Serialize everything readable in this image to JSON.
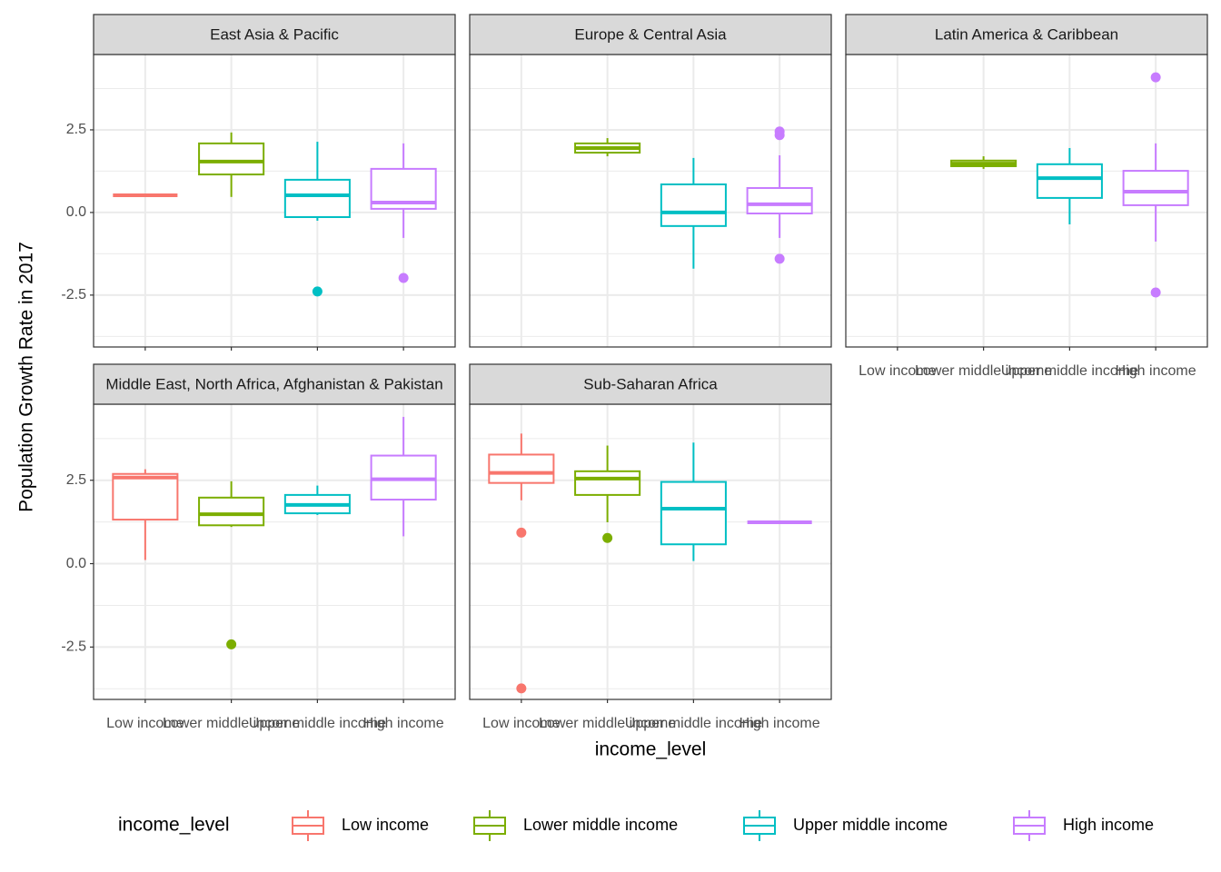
{
  "chart_data": {
    "type": "box",
    "xlabel": "income_level",
    "ylabel": "Population Growth Rate in 2017",
    "legend_title": "income_level",
    "categories": [
      "Low income",
      "Lower middle income",
      "Upper middle income",
      "High income"
    ],
    "series": [
      {
        "name": "Low income",
        "color": "#F8766D"
      },
      {
        "name": "Lower middle income",
        "color": "#7CAE00"
      },
      {
        "name": "Upper middle income",
        "color": "#00BFC4"
      },
      {
        "name": "High income",
        "color": "#C77CFF"
      }
    ],
    "ylim": [
      -4.07,
      4.78
    ],
    "yticks": [
      -2.5,
      {
        "value": 0,
        "label": "0.0"
      },
      2.5
    ],
    "grid": true,
    "legend": "bottom",
    "facets": [
      {
        "title": "East Asia & Pacific",
        "boxes": [
          {
            "min": 0.52,
            "q1": 0.52,
            "median": 0.52,
            "q3": 0.52,
            "max": 0.52,
            "outliers": []
          },
          {
            "min": 0.47,
            "q1": 1.15,
            "median": 1.54,
            "q3": 2.09,
            "max": 2.42,
            "outliers": []
          },
          {
            "min": -0.25,
            "q1": -0.14,
            "median": 0.52,
            "q3": 0.99,
            "max": 2.14,
            "outliers": [
              -2.39
            ]
          },
          {
            "min": -0.77,
            "q1": 0.11,
            "median": 0.3,
            "q3": 1.32,
            "max": 2.09,
            "outliers": [
              -1.98
            ]
          }
        ]
      },
      {
        "title": "Europe & Central Asia",
        "boxes": [
          null,
          {
            "min": 1.7,
            "q1": 1.81,
            "median": 1.95,
            "q3": 2.09,
            "max": 2.25,
            "outliers": []
          },
          {
            "min": -1.7,
            "q1": -0.41,
            "median": 0,
            "q3": 0.85,
            "max": 1.65,
            "outliers": []
          },
          {
            "min": -0.77,
            "q1": -0.03,
            "median": 0.25,
            "q3": 0.74,
            "max": 1.73,
            "outliers": [
              2.45,
              2.34,
              -1.4
            ]
          }
        ]
      },
      {
        "title": "Latin America & Caribbean",
        "boxes": [
          null,
          {
            "min": 1.32,
            "q1": 1.4,
            "median": 1.48,
            "q3": 1.57,
            "max": 1.7,
            "outliers": []
          },
          {
            "min": -0.36,
            "q1": 0.44,
            "median": 1.04,
            "q3": 1.46,
            "max": 1.95,
            "outliers": []
          },
          {
            "min": -0.88,
            "q1": 0.22,
            "median": 0.63,
            "q3": 1.26,
            "max": 2.09,
            "outliers": [
              4.09,
              -2.42
            ]
          }
        ]
      },
      {
        "title": "Middle East, North Africa, Afghanistan & Pakistan",
        "boxes": [
          {
            "min": 0.11,
            "q1": 1.32,
            "median": 2.58,
            "q3": 2.69,
            "max": 2.83,
            "outliers": []
          },
          {
            "min": 1.1,
            "q1": 1.15,
            "median": 1.48,
            "q3": 1.98,
            "max": 2.47,
            "outliers": [
              -2.42
            ]
          },
          {
            "min": 1.46,
            "q1": 1.51,
            "median": 1.76,
            "q3": 2.06,
            "max": 2.34,
            "outliers": []
          },
          {
            "min": 0.82,
            "q1": 1.92,
            "median": 2.53,
            "q3": 3.24,
            "max": 4.4,
            "outliers": []
          }
        ]
      },
      {
        "title": "Sub-Saharan Africa",
        "boxes": [
          {
            "min": 1.9,
            "q1": 2.42,
            "median": 2.72,
            "q3": 3.27,
            "max": 3.9,
            "outliers": [
              0.93,
              -3.74
            ]
          },
          {
            "min": 1.24,
            "q1": 2.06,
            "median": 2.55,
            "q3": 2.77,
            "max": 3.54,
            "outliers": [
              0.77
            ]
          },
          {
            "min": 0.08,
            "q1": 0.58,
            "median": 1.65,
            "q3": 2.45,
            "max": 3.63,
            "outliers": []
          },
          {
            "min": 1.24,
            "q1": 1.24,
            "median": 1.24,
            "q3": 1.24,
            "max": 1.24,
            "outliers": []
          }
        ]
      }
    ]
  }
}
